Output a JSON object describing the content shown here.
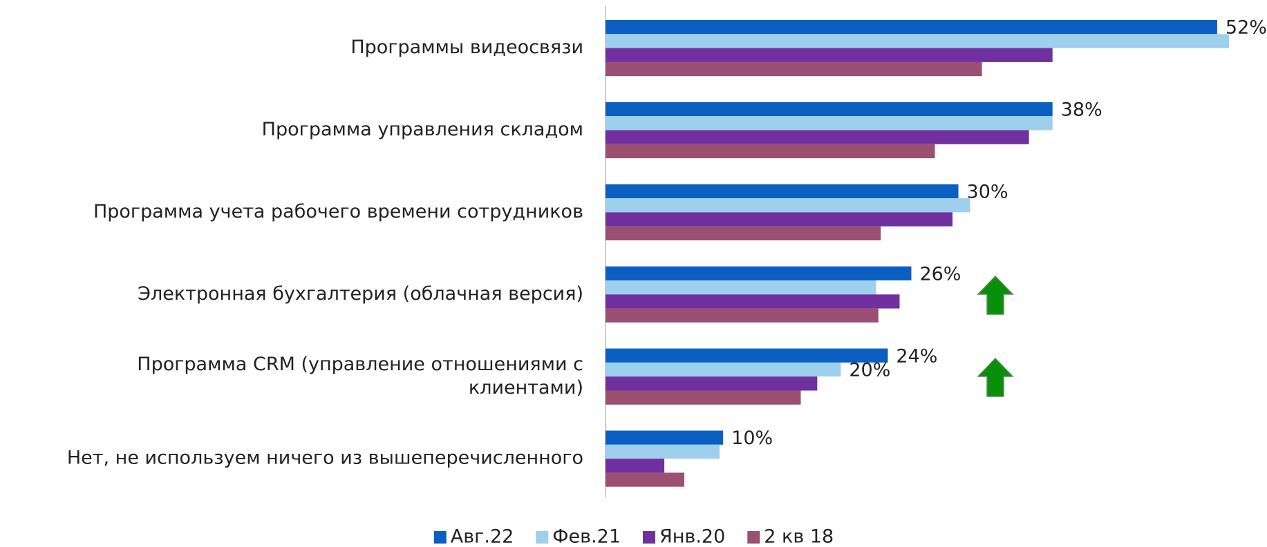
{
  "chart_data": {
    "type": "bar",
    "orientation": "horizontal",
    "categories": [
      "Программы видеосвязи",
      "Программа управления складом",
      "Программа учета рабочего времени сотрудников",
      "Электронная бухгалтерия (облачная версия)",
      "Программа CRM (управление отношениями с\nклиентами)",
      "Нет, не используем ничего из вышеперечисленного"
    ],
    "series": [
      {
        "name": "Авг.22",
        "color": "#0b5fc1",
        "values": [
          52,
          38,
          30,
          26,
          24,
          10
        ],
        "value_labels": [
          "52%",
          "38%",
          "30%",
          "26%",
          "24%",
          "10%"
        ]
      },
      {
        "name": "Фев.21",
        "color": "#9ecfec",
        "values": [
          53,
          38,
          31,
          23,
          20,
          9.7
        ],
        "value_labels": [
          null,
          null,
          null,
          null,
          "20%",
          null
        ]
      },
      {
        "name": "Янв.20",
        "color": "#7030a0",
        "values": [
          38,
          36,
          29.5,
          25,
          18,
          5
        ],
        "value_labels": [
          null,
          null,
          null,
          null,
          null,
          null
        ]
      },
      {
        "name": "2 кв 18",
        "color": "#9b4f72",
        "values": [
          32,
          28,
          23.4,
          23.2,
          16.6,
          6.7
        ],
        "value_labels": [
          null,
          null,
          null,
          null,
          null,
          null
        ]
      }
    ],
    "xlim": [
      0,
      56
    ],
    "legend": "bottom"
  }
}
